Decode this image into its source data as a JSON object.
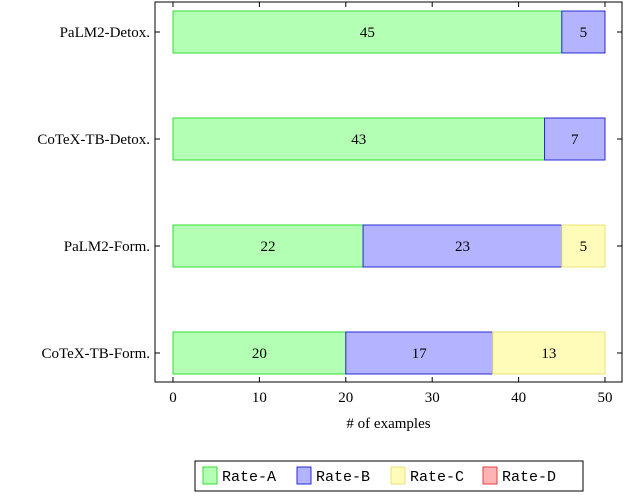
{
  "chart_data": {
    "type": "bar",
    "orientation": "horizontal",
    "stacked": true,
    "categories": [
      "PaLM2-Detox.",
      "CoTeX-TB-Detox.",
      "PaLM2-Form.",
      "CoTeX-TB-Form."
    ],
    "series": [
      {
        "name": "Rate-A",
        "values": [
          45,
          43,
          22,
          20
        ],
        "fill": "#b3ffb3",
        "stroke": "#33dd33"
      },
      {
        "name": "Rate-B",
        "values": [
          5,
          7,
          23,
          17
        ],
        "fill": "#b3b3ff",
        "stroke": "#2a2ad6"
      },
      {
        "name": "Rate-C",
        "values": [
          0,
          0,
          5,
          13
        ],
        "fill": "#fffbb8",
        "stroke": "#eee37a"
      },
      {
        "name": "Rate-D",
        "values": [
          0,
          0,
          0,
          0
        ],
        "fill": "#ffb3b3",
        "stroke": "#e04040"
      }
    ],
    "xlabel": "# of examples",
    "ylabel": "",
    "title": "",
    "xlim": [
      0,
      50
    ],
    "xticks": [
      0,
      10,
      20,
      30,
      40,
      50
    ],
    "grid": false,
    "legend_position": "bottom-center"
  }
}
